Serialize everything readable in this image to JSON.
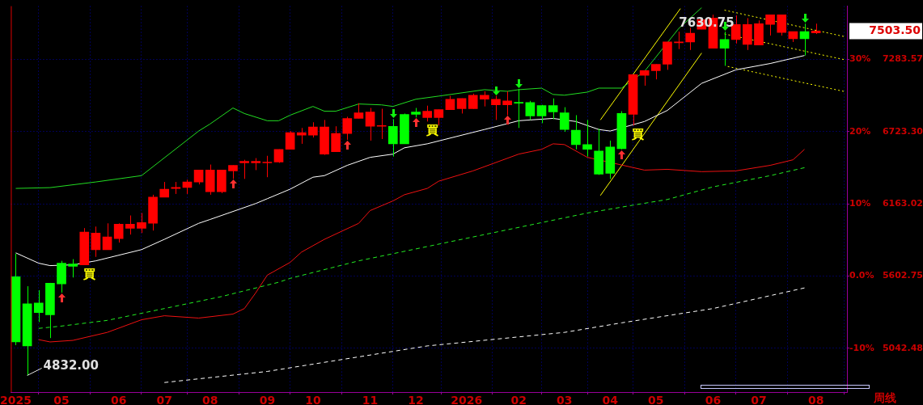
{
  "chart_data": {
    "type": "candlestick",
    "x": [
      "2025-03-31",
      "2025-04-07",
      "2025-04-14",
      "2025-04-21",
      "2025-04-28",
      "2025-05-05",
      "2025-05-12",
      "2025-05-19",
      "2025-05-26",
      "2025-06-02",
      "2025-06-09",
      "2025-06-16",
      "2025-06-23",
      "2025-06-30",
      "2025-07-07",
      "2025-07-14",
      "2025-07-21",
      "2025-07-28",
      "2025-08-04",
      "2025-08-11",
      "2025-08-18",
      "2025-08-25",
      "2025-09-01",
      "2025-09-08",
      "2025-09-15",
      "2025-09-22",
      "2025-09-29",
      "2025-10-06",
      "2025-10-13",
      "2025-10-20",
      "2025-10-27",
      "2025-11-03",
      "2025-11-10",
      "2025-11-17",
      "2025-11-24",
      "2025-12-01",
      "2025-12-08",
      "2025-12-15",
      "2025-12-22",
      "2025-12-29",
      "2026-01-05",
      "2026-01-12",
      "2026-01-19",
      "2026-01-26",
      "2026-02-02",
      "2026-02-09",
      "2026-02-16",
      "2026-02-23",
      "2026-03-02",
      "2026-03-09",
      "2026-03-16",
      "2026-03-23",
      "2026-03-30",
      "2026-04-06",
      "2026-04-13",
      "2026-04-20",
      "2026-04-27",
      "2026-05-04",
      "2026-05-11",
      "2026-05-18",
      "2026-05-25",
      "2026-06-01",
      "2026-06-08",
      "2026-06-15",
      "2026-06-22",
      "2026-06-29",
      "2026-07-06",
      "2026-07-13",
      "2026-07-20",
      "2026-07-27",
      "2026-08-03"
    ],
    "ohlc": [
      [
        5598,
        5777,
        5067,
        5092
      ],
      [
        5388,
        5524,
        4832,
        5061
      ],
      [
        5394,
        5493,
        5246,
        5320
      ],
      [
        5548,
        5550,
        5122,
        5302
      ],
      [
        5703,
        5721,
        5474,
        5542
      ],
      [
        5697,
        5734,
        5592,
        5678
      ],
      [
        5690,
        5975,
        5690,
        5944
      ],
      [
        5808,
        5987,
        5752,
        5937
      ],
      [
        5808,
        6012,
        5808,
        5907
      ],
      [
        5894,
        6012,
        5863,
        6005
      ],
      [
        5974,
        6073,
        5925,
        6005
      ],
      [
        5974,
        6092,
        5937,
        6018
      ],
      [
        6012,
        6234,
        5956,
        6215
      ],
      [
        6215,
        6333,
        6215,
        6277
      ],
      [
        6283,
        6333,
        6240,
        6290
      ],
      [
        6290,
        6351,
        6240,
        6333
      ],
      [
        6333,
        6425,
        6314,
        6425
      ],
      [
        6258,
        6468,
        6234,
        6425
      ],
      [
        6258,
        6425,
        6246,
        6425
      ],
      [
        6419,
        6462,
        6357,
        6462
      ],
      [
        6481,
        6505,
        6357,
        6493
      ],
      [
        6481,
        6518,
        6425,
        6493
      ],
      [
        6481,
        6536,
        6370,
        6487
      ],
      [
        6487,
        6586,
        6481,
        6586
      ],
      [
        6586,
        6728,
        6586,
        6715
      ],
      [
        6697,
        6752,
        6629,
        6715
      ],
      [
        6697,
        6796,
        6678,
        6759
      ],
      [
        6549,
        6814,
        6543,
        6759
      ],
      [
        6567,
        6765,
        6567,
        6709
      ],
      [
        6709,
        6839,
        6660,
        6826
      ],
      [
        6826,
        6944,
        6826,
        6870
      ],
      [
        6765,
        6907,
        6654,
        6876
      ],
      [
        6765,
        6901,
        6666,
        6771
      ],
      [
        6765,
        6820,
        6530,
        6629
      ],
      [
        6857,
        6864,
        6629,
        6629
      ],
      [
        6876,
        6907,
        6833,
        6857
      ],
      [
        6833,
        6925,
        6802,
        6882
      ],
      [
        6833,
        6894,
        6771,
        6894
      ],
      [
        6894,
        7001,
        6894,
        6975
      ],
      [
        6901,
        6981,
        6864,
        6981
      ],
      [
        6901,
        7018,
        6901,
        7006
      ],
      [
        6975,
        7036,
        6919,
        7006
      ],
      [
        6931,
        7001,
        6814,
        6975
      ],
      [
        6931,
        7036,
        6851,
        6962
      ],
      [
        6950,
        7055,
        6752,
        6944
      ],
      [
        6950,
        6962,
        6814,
        6845
      ],
      [
        6925,
        6931,
        6789,
        6845
      ],
      [
        6925,
        6981,
        6820,
        6876
      ],
      [
        6870,
        6913,
        6722,
        6740
      ],
      [
        6734,
        6851,
        6586,
        6623
      ],
      [
        6623,
        6814,
        6530,
        6586
      ],
      [
        6573,
        6746,
        6388,
        6394
      ],
      [
        6604,
        6654,
        6357,
        6400
      ],
      [
        6864,
        6882,
        6586,
        6592
      ],
      [
        6857,
        7166,
        6771,
        7166
      ],
      [
        7160,
        7197,
        7080,
        7197
      ],
      [
        7197,
        7246,
        7129,
        7246
      ],
      [
        7246,
        7419,
        7203,
        7419
      ],
      [
        7413,
        7499,
        7364,
        7419
      ],
      [
        7419,
        7530,
        7357,
        7487
      ],
      [
        7518,
        7600,
        7518,
        7592
      ],
      [
        7370,
        7630.75,
        7370,
        7604
      ],
      [
        7438,
        7499,
        7234,
        7370
      ],
      [
        7438,
        7625,
        7407,
        7555
      ],
      [
        7401,
        7604,
        7357,
        7555
      ],
      [
        7395,
        7586,
        7395,
        7561
      ],
      [
        7555,
        7629,
        7469,
        7629
      ],
      [
        7493,
        7629,
        7469,
        7629
      ],
      [
        7444,
        7499,
        7419,
        7499
      ],
      [
        7499,
        7561,
        7314,
        7444
      ],
      [
        7490,
        7561,
        7481,
        7503.5
      ]
    ],
    "colors": [
      "#00ff00",
      "#00ff00",
      "#00ff00",
      "#00ff00",
      "#00ff00",
      "#00ff00",
      "#ff0000",
      "#ff0000",
      "#ff0000",
      "#ff0000",
      "#ff0000",
      "#ff0000",
      "#ff0000",
      "#ff0000",
      "#ff0000",
      "#ff0000",
      "#ff0000",
      "#ff0000",
      "#ff0000",
      "#ff0000",
      "#ff0000",
      "#ff0000",
      "#ff0000",
      "#ff0000",
      "#ff0000",
      "#ff0000",
      "#ff0000",
      "#ff0000",
      "#ff0000",
      "#ff0000",
      "#ff0000",
      "#ff0000",
      "#ff0000",
      "#00ff00",
      "#00ff00",
      "#00ff00",
      "#ff0000",
      "#ff0000",
      "#ff0000",
      "#ff0000",
      "#ff0000",
      "#ff0000",
      "#ff0000",
      "#ff0000",
      "#00ff00",
      "#00ff00",
      "#00ff00",
      "#00ff00",
      "#00ff00",
      "#00ff00",
      "#00ff00",
      "#00ff00",
      "#00ff00",
      "#00ff00",
      "#ff0000",
      "#ff0000",
      "#ff0000",
      "#ff0000",
      "#ff0000",
      "#ff0000",
      "#ff0000",
      "#ff0000",
      "#00ff00",
      "#ff0000",
      "#ff0000",
      "#ff0000",
      "#ff0000",
      "#ff0000",
      "#ff0000",
      "#00ff00",
      "#ff0000"
    ],
    "series": [
      {
        "type": "line",
        "color": "#22dd22",
        "line_style": "solid",
        "x": [
          "2025-03-31",
          "2025-04-21",
          "2025-05-19",
          "2025-06-16",
          "2025-07-21",
          "2025-07-28",
          "2025-08-11",
          "2025-08-18",
          "2025-09-01",
          "2025-09-08",
          "2025-09-15",
          "2025-09-29",
          "2025-10-06",
          "2025-10-13",
          "2025-10-27",
          "2025-11-10",
          "2025-11-17",
          "2025-12-01",
          "2025-12-15",
          "2026-01-12",
          "2026-01-26",
          "2026-02-02",
          "2026-02-16",
          "2026-02-23",
          "2026-03-02",
          "2026-03-16",
          "2026-03-23",
          "2026-04-06",
          "2026-04-20",
          "2026-05-11",
          "2026-05-25"
        ],
        "values": [
          6283,
          6289,
          6333,
          6382,
          6728,
          6783,
          6907,
          6864,
          6808,
          6808,
          6851,
          6919,
          6882,
          6882,
          6938,
          6931,
          6919,
          6975,
          6999,
          7049,
          7036,
          7049,
          7061,
          7012,
          7006,
          7030,
          7061,
          7061,
          7191,
          7524,
          7685
        ]
      },
      {
        "type": "line",
        "color": "#ffffff",
        "line_style": "solid",
        "x": [
          "2025-03-31",
          "2025-04-14",
          "2025-04-21",
          "2025-05-05",
          "2025-05-19",
          "2025-06-16",
          "2025-06-30",
          "2025-07-21",
          "2025-07-28",
          "2025-08-25",
          "2025-09-01",
          "2025-09-15",
          "2025-09-29",
          "2025-10-06",
          "2025-10-20",
          "2025-11-03",
          "2025-11-17",
          "2025-11-24",
          "2025-12-08",
          "2026-01-12",
          "2026-02-02",
          "2026-02-23",
          "2026-03-09",
          "2026-03-23",
          "2026-03-30",
          "2026-04-20",
          "2026-05-04",
          "2026-05-25",
          "2026-06-15",
          "2026-07-06",
          "2026-07-27"
        ],
        "values": [
          5783,
          5703,
          5684,
          5690,
          5721,
          5808,
          5888,
          6012,
          6042,
          6166,
          6203,
          6277,
          6370,
          6382,
          6462,
          6524,
          6549,
          6598,
          6629,
          6740,
          6808,
          6826,
          6802,
          6740,
          6728,
          6802,
          6888,
          7098,
          7203,
          7252,
          7314
        ]
      },
      {
        "type": "line",
        "color": "#ee1111",
        "line_style": "solid",
        "x": [
          "2025-04-14",
          "2025-04-21",
          "2025-05-05",
          "2025-05-26",
          "2025-06-16",
          "2025-06-30",
          "2025-07-21",
          "2025-08-11",
          "2025-08-18",
          "2025-08-25",
          "2025-09-01",
          "2025-09-15",
          "2025-09-22",
          "2025-10-06",
          "2025-10-27",
          "2025-11-03",
          "2025-11-17",
          "2025-11-24",
          "2025-12-08",
          "2025-12-15",
          "2026-01-05",
          "2026-02-02",
          "2026-02-16",
          "2026-02-23",
          "2026-03-02",
          "2026-03-16",
          "2026-04-20",
          "2026-05-04",
          "2026-05-25",
          "2026-06-15",
          "2026-07-06",
          "2026-07-20",
          "2026-07-27"
        ],
        "values": [
          5110,
          5092,
          5104,
          5166,
          5264,
          5295,
          5277,
          5308,
          5351,
          5474,
          5610,
          5709,
          5789,
          5888,
          6012,
          6111,
          6186,
          6234,
          6283,
          6339,
          6419,
          6549,
          6586,
          6629,
          6623,
          6524,
          6425,
          6431,
          6413,
          6419,
          6462,
          6505,
          6586
        ]
      },
      {
        "type": "line",
        "color": "#22ee22",
        "line_style": "dashed",
        "x": [
          "2025-04-14",
          "2025-04-28",
          "2025-05-26",
          "2025-06-30",
          "2025-08-04",
          "2025-09-08",
          "2025-09-15",
          "2025-10-27",
          "2025-12-08",
          "2026-03-16",
          "2026-04-13",
          "2026-05-04",
          "2026-06-01",
          "2026-07-06",
          "2026-07-27"
        ],
        "values": [
          5197,
          5215,
          5259,
          5351,
          5444,
          5555,
          5585,
          5721,
          5832,
          6092,
          6153,
          6197,
          6295,
          6382,
          6444
        ]
      },
      {
        "type": "line",
        "color": "#ffffff",
        "line_style": "dashed",
        "x": [
          "2025-06-30",
          "2025-09-01",
          "2025-12-08",
          "2026-03-02",
          "2026-04-06",
          "2026-06-01",
          "2026-07-27"
        ],
        "values": [
          4777,
          4863,
          5061,
          5166,
          5240,
          5351,
          5511
        ]
      },
      {
        "type": "line",
        "color": "#ffff00",
        "line_style": "solid",
        "x": [
          "2026-03-24",
          "2026-05-12"
        ],
        "values": [
          6814,
          7678
        ]
      },
      {
        "type": "line",
        "color": "#ffff00",
        "line_style": "solid",
        "x": [
          "2026-03-24",
          "2026-05-25"
        ],
        "values": [
          6228,
          7333
        ]
      },
      {
        "type": "line",
        "color": "#ffff00",
        "line_style": "dotted",
        "x": [
          "2026-06-08",
          "2026-08-20"
        ],
        "values": [
          7666,
          7462
        ]
      },
      {
        "type": "line",
        "color": "#ffff00",
        "line_style": "dotted",
        "x": [
          "2026-06-08",
          "2026-08-20"
        ],
        "values": [
          7481,
          7283
        ]
      },
      {
        "type": "line",
        "color": "#ffff00",
        "line_style": "dotted",
        "x": [
          "2026-06-10",
          "2026-08-20"
        ],
        "values": [
          7229,
          7036
        ]
      }
    ],
    "xlim": [
      "2025-03-28",
      "2026-08-22"
    ],
    "xticks": [
      {
        "value": "2025-03-31",
        "label": "2025"
      },
      {
        "value": "2025-04-28",
        "label": "05"
      },
      {
        "value": "2025-06-02",
        "label": "06"
      },
      {
        "value": "2025-06-30",
        "label": "07"
      },
      {
        "value": "2025-07-28",
        "label": "08"
      },
      {
        "value": "2025-09-01",
        "label": "09"
      },
      {
        "value": "2025-09-29",
        "label": "10"
      },
      {
        "value": "2025-11-03",
        "label": "11"
      },
      {
        "value": "2025-12-01",
        "label": "12"
      },
      {
        "value": "2026-01-01",
        "label": "2026"
      },
      {
        "value": "2026-02-02",
        "label": "02"
      },
      {
        "value": "2026-03-02",
        "label": "03"
      },
      {
        "value": "2026-03-30",
        "label": "04"
      },
      {
        "value": "2026-04-27",
        "label": "05"
      },
      {
        "value": "2026-06-01",
        "label": "06"
      },
      {
        "value": "2026-06-29",
        "label": "07"
      },
      {
        "value": "2026-08-03",
        "label": "08"
      }
    ],
    "ylim": [
      4703,
      7697
    ],
    "yticks": [
      5042.48,
      5602.75,
      6163.02,
      {
        "value": 6723.3,
        "label": "6723.30"
      },
      7283.57
    ],
    "y2lim": [
      -16.06,
      37.38
    ],
    "y2ticks": [
      {
        "value": -10,
        "label": "-10%"
      },
      {
        "value": 0,
        "label": "0.0%"
      },
      {
        "value": 10,
        "label": "10%"
      },
      {
        "value": 20,
        "label": "20%"
      },
      {
        "value": 30,
        "label": "30%"
      }
    ],
    "grid": true,
    "annotations": [
      {
        "text": "4832.00",
        "x": "2025-04-07",
        "y": 4832
      },
      {
        "text": "7630.75",
        "x": "2026-06-01",
        "y": 7630.75
      },
      {
        "text": "買",
        "x": "2025-05-12",
        "y": 5690
      },
      {
        "text": "買",
        "x": "2025-12-08",
        "y": 6802
      },
      {
        "text": "買",
        "x": "2026-04-13",
        "y": 6771
      },
      "7503.50",
      "周线"
    ]
  }
}
